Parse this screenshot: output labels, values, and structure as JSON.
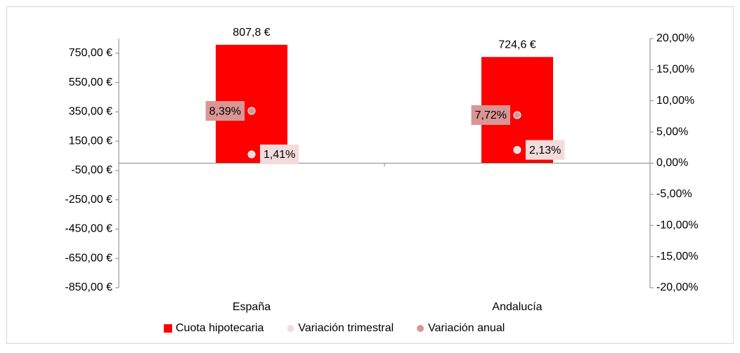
{
  "chart_data": {
    "type": "bar",
    "categories": [
      "España",
      "Andalucía"
    ],
    "series": [
      {
        "name": "Cuota hipotecaria",
        "type": "bar",
        "color": "#ff0000",
        "values": [
          807.8,
          724.6
        ],
        "value_labels": [
          "807,8 €",
          "724,6 €"
        ]
      },
      {
        "name": "Variación trimestral",
        "type": "scatter",
        "axis": "y2",
        "color": "#f2dcdb",
        "values": [
          1.41,
          2.13
        ],
        "value_labels": [
          "1,41%",
          "2,13%"
        ]
      },
      {
        "name": "Variación anual",
        "type": "scatter",
        "axis": "y2",
        "color": "#d99694",
        "values": [
          8.39,
          7.72
        ],
        "value_labels": [
          "8,39%",
          "7,72%"
        ]
      }
    ],
    "ylim": [
      -850,
      850
    ],
    "yticks": [
      {
        "value": -850,
        "label": "-850,00 €"
      },
      {
        "value": -650,
        "label": "-650,00 €"
      },
      {
        "value": -450,
        "label": "-450,00 €"
      },
      {
        "value": -250,
        "label": "-250,00 €"
      },
      {
        "value": -50,
        "label": "-50,00 €"
      },
      {
        "value": 150,
        "label": "150,00 €"
      },
      {
        "value": 350,
        "label": "350,00 €"
      },
      {
        "value": 550,
        "label": "550,00 €"
      },
      {
        "value": 750,
        "label": "750,00 €"
      }
    ],
    "y2lim": [
      -20,
      20
    ],
    "y2ticks": [
      {
        "value": -20,
        "label": "-20,00%"
      },
      {
        "value": -15,
        "label": "-15,00%"
      },
      {
        "value": -10,
        "label": "-10,00%"
      },
      {
        "value": -5,
        "label": "-5,00%"
      },
      {
        "value": 0,
        "label": "0,00%"
      },
      {
        "value": 5,
        "label": "5,00%"
      },
      {
        "value": 10,
        "label": "10,00%"
      },
      {
        "value": 15,
        "label": "15,00%"
      },
      {
        "value": 20,
        "label": "20,00%"
      }
    ],
    "legend": "bottom"
  }
}
